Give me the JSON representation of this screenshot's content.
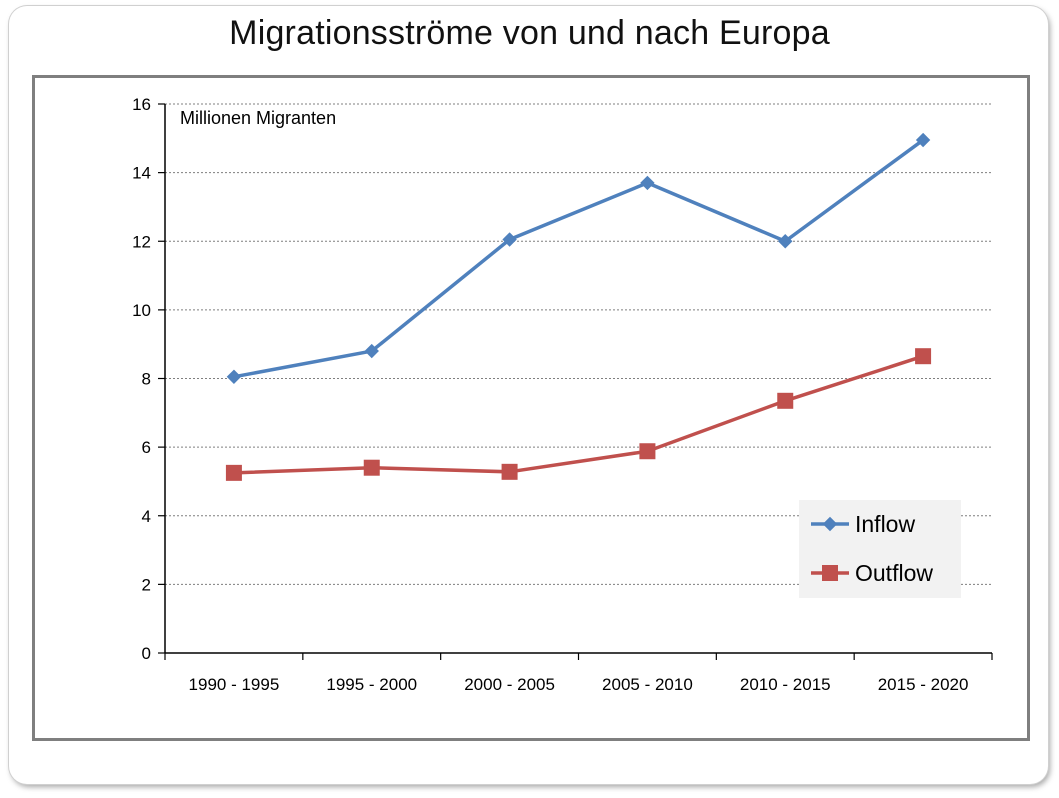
{
  "slide": {
    "title": "Migrationsströme von und nach Europa"
  },
  "chart_data": {
    "type": "line",
    "title": "Migrationsströme von und nach Europa",
    "unit_label": "Millionen Migranten",
    "xlabel": "",
    "ylabel": "",
    "categories": [
      "1990 - 1995",
      "1995 - 2000",
      "2000 - 2005",
      "2005 - 2010",
      "2010 - 2015",
      "2015 - 2020"
    ],
    "ylim": [
      0,
      16
    ],
    "yticks": [
      0,
      2,
      4,
      6,
      8,
      10,
      12,
      14,
      16
    ],
    "grid": "horizontal dashed",
    "legend_position": "bottom-right",
    "series": [
      {
        "name": "Inflow",
        "values": [
          8.05,
          8.8,
          12.05,
          13.7,
          12.0,
          14.95
        ],
        "color": "#4F81BD",
        "marker": "diamond"
      },
      {
        "name": "Outflow",
        "values": [
          5.25,
          5.4,
          5.28,
          5.88,
          7.35,
          8.65
        ],
        "color": "#C0504D",
        "marker": "square"
      }
    ]
  }
}
